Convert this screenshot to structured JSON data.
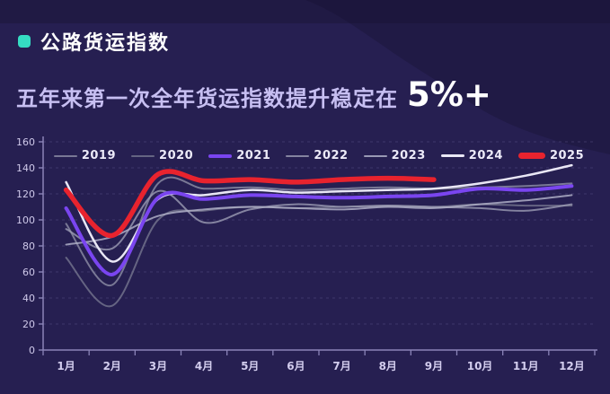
{
  "header": {
    "title": "公路货运指数",
    "bullet_color": "#35dcc3"
  },
  "subtitle": {
    "text": "五年来第一次全年货运指数提升稳定在",
    "highlight": "5%+"
  },
  "colors": {
    "background": "#261f51",
    "mountain_shade": "#1b163c",
    "axis": "#8b84b8",
    "grid": "#6d66a0",
    "tick_label": "#cfc9ea",
    "legend_text": "#eceaf8",
    "red_2025": "#e8232e",
    "purple_2021": "#7a45f0",
    "white_2024": "#e9e7f5"
  },
  "chart_data": {
    "type": "line",
    "title": "公路货运指数 2019-2025 月度曲线",
    "categories": [
      "1月",
      "2月",
      "3月",
      "4月",
      "5月",
      "6月",
      "7月",
      "8月",
      "9月",
      "10月",
      "11月",
      "12月"
    ],
    "ylabel": "",
    "xlabel": "",
    "ylim": [
      0,
      160
    ],
    "ytick_step": 20,
    "grid": "horizontal-dashed",
    "legend_position": "top",
    "series": [
      {
        "name": "2019",
        "color": "#8e8ea6",
        "width": 2,
        "opacity": 0.8,
        "values": [
          97,
          50,
          128,
          124,
          125,
          123,
          124,
          125,
          124,
          125,
          126,
          128
        ]
      },
      {
        "name": "2020",
        "color": "#75758e",
        "width": 2,
        "opacity": 0.8,
        "values": [
          71,
          34,
          100,
          107,
          110,
          109,
          110,
          111,
          110,
          112,
          111,
          111
        ]
      },
      {
        "name": "2021",
        "color": "#7a45f0",
        "width": 4,
        "opacity": 1,
        "values": [
          109,
          58,
          117,
          116,
          119,
          118,
          117,
          118,
          119,
          124,
          123,
          126
        ]
      },
      {
        "name": "2022",
        "color": "#9c9cb4",
        "width": 2,
        "opacity": 0.8,
        "values": [
          93,
          78,
          122,
          98,
          108,
          112,
          110,
          111,
          110,
          109,
          107,
          112
        ]
      },
      {
        "name": "2023",
        "color": "#aeaec6",
        "width": 2,
        "opacity": 0.85,
        "values": [
          81,
          87,
          103,
          108,
          110,
          109,
          108,
          110,
          109,
          112,
          115,
          119
        ]
      },
      {
        "name": "2024",
        "color": "#e9e7f5",
        "width": 2.5,
        "opacity": 1,
        "values": [
          129,
          68,
          116,
          119,
          123,
          121,
          122,
          123,
          124,
          128,
          134,
          142
        ]
      },
      {
        "name": "2025",
        "color": "#e8232e",
        "width": 5.5,
        "opacity": 1,
        "values": [
          123,
          88,
          135,
          130,
          131,
          129,
          131,
          132,
          131
        ]
      }
    ]
  }
}
